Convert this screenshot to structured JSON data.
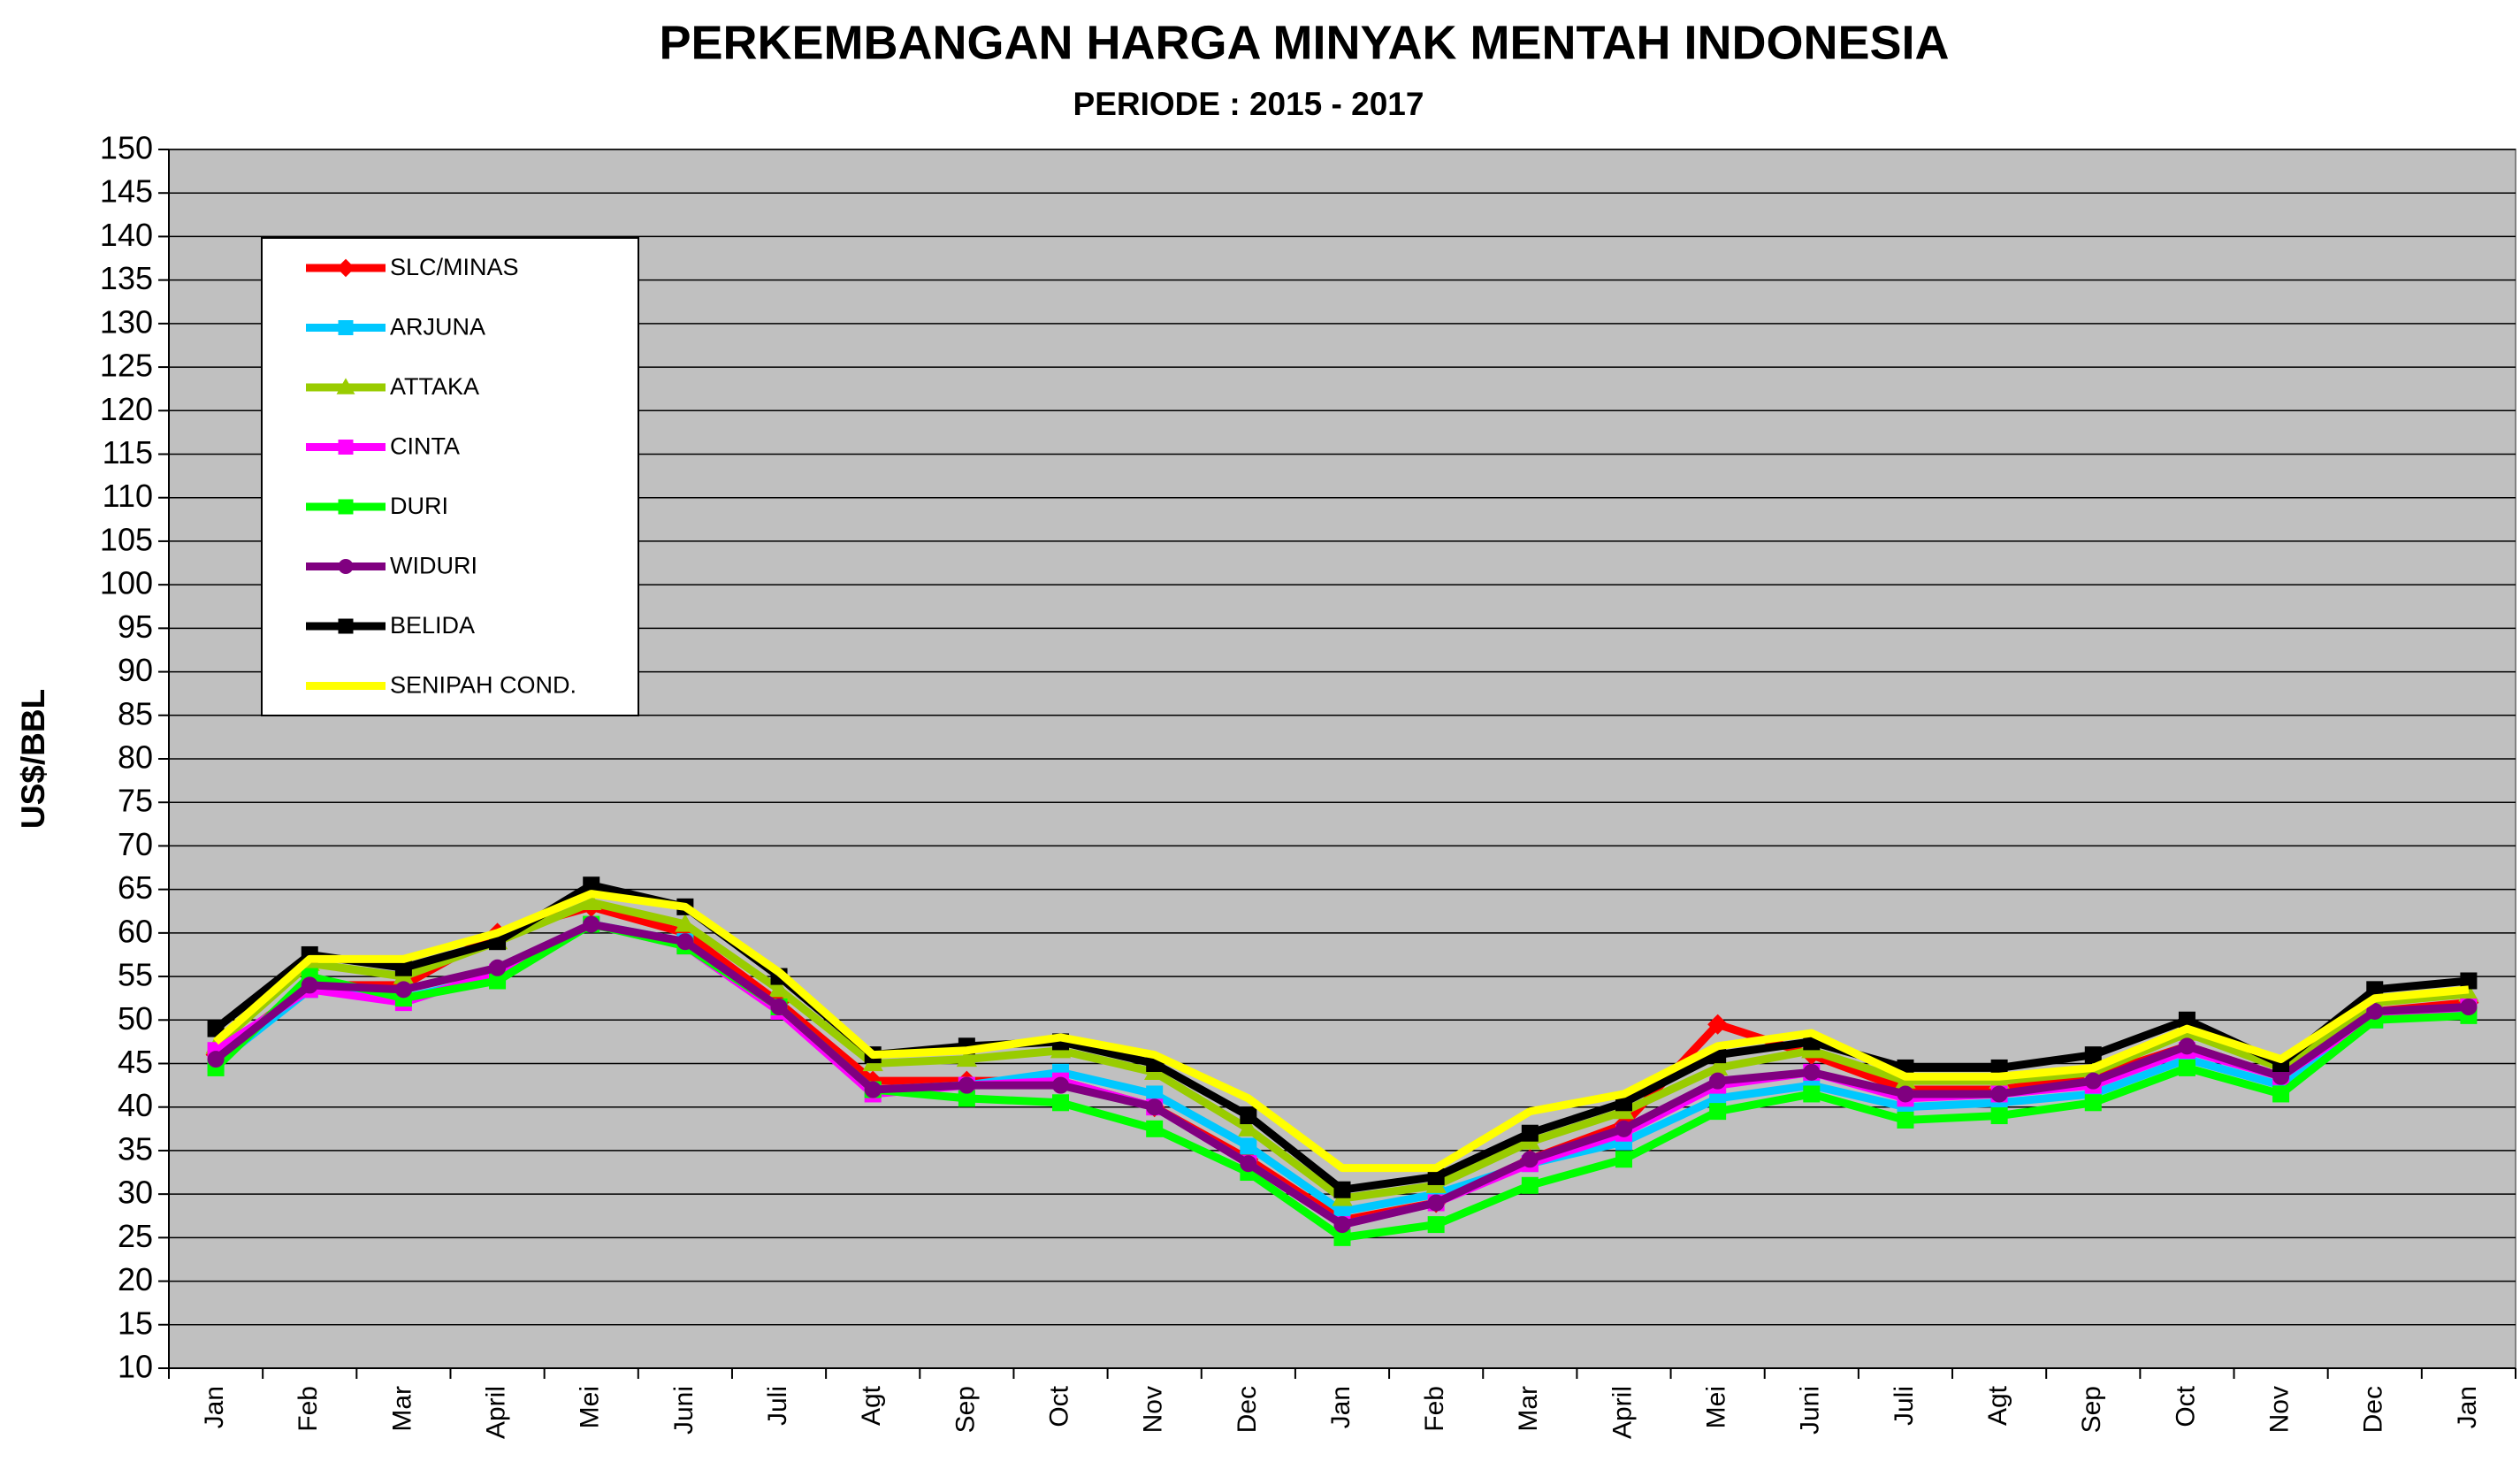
{
  "chart_data": {
    "type": "line",
    "title": "PERKEMBANGAN HARGA MINYAK MENTAH INDONESIA",
    "subtitle": "PERIODE : 2015 - 2017",
    "y_label": "US$/BBL",
    "categories": [
      "Jan",
      "Feb",
      "Mar",
      "April",
      "Mei",
      "Juni",
      "Juli",
      "Agt",
      "Sep",
      "Oct",
      "Nov",
      "Dec",
      "Jan",
      "Feb",
      "Mar",
      "April",
      "Mei",
      "Juni",
      "Juli",
      "Agt",
      "Sep",
      "Oct",
      "Nov",
      "Dec",
      "Jan"
    ],
    "ylim": [
      10,
      150
    ],
    "yticks": [
      10,
      15,
      20,
      25,
      30,
      35,
      40,
      45,
      50,
      55,
      60,
      65,
      70,
      75,
      80,
      85,
      90,
      95,
      100,
      105,
      110,
      115,
      120,
      125,
      130,
      135,
      140,
      145,
      150
    ],
    "grid": true,
    "legend": "upper left",
    "series": [
      {
        "name": "SLC/MINAS",
        "color": "#ff0000",
        "marker": "diamond",
        "values": [
          46,
          54,
          54,
          60,
          63,
          60,
          52,
          43,
          43,
          43,
          40,
          34,
          27,
          29,
          34,
          38,
          49.5,
          46,
          42,
          42,
          43.5,
          47,
          43.5,
          51,
          52
        ]
      },
      {
        "name": "ARJUNA",
        "color": "#00c8ff",
        "marker": "square",
        "values": [
          45,
          53.5,
          52.5,
          55,
          61,
          59,
          51,
          42,
          42.5,
          44,
          41.5,
          35.5,
          28,
          30,
          33.5,
          36,
          41,
          42.5,
          40,
          40.5,
          41.5,
          45.5,
          42.5,
          50,
          51
        ]
      },
      {
        "name": "ATTAKA",
        "color": "#99cc00",
        "marker": "triangle",
        "values": [
          47,
          56.5,
          55,
          59,
          63.5,
          61,
          53.5,
          45,
          45.5,
          46.5,
          44,
          37.5,
          29.5,
          31,
          36,
          39.5,
          44.5,
          46.5,
          43,
          43,
          44,
          48.5,
          44.5,
          52,
          53
        ]
      },
      {
        "name": "CINTA",
        "color": "#ff00ff",
        "marker": "square",
        "values": [
          46.5,
          53.5,
          52,
          55.5,
          61,
          58.5,
          51,
          41.5,
          42.5,
          43,
          40,
          33.5,
          26.5,
          29,
          33.5,
          37,
          42.5,
          44,
          41,
          41.5,
          42.5,
          46.5,
          43.5,
          50.5,
          51.5
        ]
      },
      {
        "name": "DURI",
        "color": "#00ff00",
        "marker": "square",
        "values": [
          44.5,
          55,
          52.5,
          54.5,
          61,
          58.5,
          51.5,
          42,
          41,
          40.5,
          37.5,
          32.5,
          25,
          26.5,
          31,
          34,
          39.5,
          41.5,
          38.5,
          39,
          40.5,
          44.5,
          41.5,
          50,
          50.5
        ]
      },
      {
        "name": "WIDURI",
        "color": "#800080",
        "marker": "circle",
        "values": [
          45.5,
          54,
          53.5,
          56,
          61,
          59,
          51.5,
          42,
          42.5,
          42.5,
          40,
          33.5,
          26.5,
          29,
          34,
          37.5,
          43,
          44,
          41.5,
          41.5,
          43,
          47,
          43.5,
          51,
          51.5
        ]
      },
      {
        "name": "BELIDA",
        "color": "#000000",
        "marker": "square",
        "values": [
          49,
          57.5,
          56,
          59,
          65.5,
          63,
          55,
          46,
          47,
          47.5,
          45,
          39,
          30.5,
          32,
          37,
          40.5,
          46,
          47.5,
          44.5,
          44.5,
          46,
          50,
          45,
          53.5,
          54.5
        ]
      },
      {
        "name": "SENIPAH COND.",
        "color": "#ffff00",
        "marker": "none",
        "values": [
          47.5,
          57,
          57,
          60,
          64.5,
          63,
          55.5,
          46,
          46.5,
          48,
          46,
          41,
          33,
          33,
          39.5,
          41.5,
          47,
          48.5,
          43.5,
          43.5,
          44.5,
          49,
          45.5,
          52.5,
          53.5
        ]
      }
    ]
  }
}
